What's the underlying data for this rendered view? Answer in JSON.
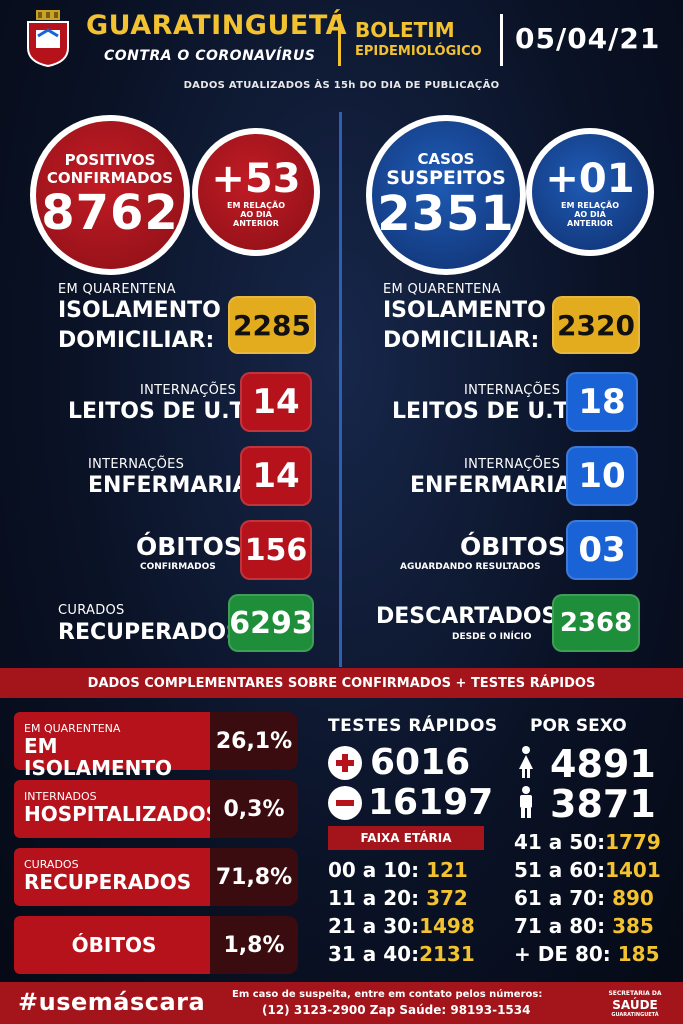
{
  "header": {
    "city": "GUARATINGUETÁ",
    "subtitle": "CONTRA O CORONAVÍRUS",
    "boletim_line1": "BOLETIM",
    "boletim_line2": "EPIDEMIOLÓGICO",
    "date": "05/04/21",
    "updated_note": "DADOS ATUALIZADOS ÀS 15h DO DIA DE PUBLICAÇÃO"
  },
  "colors": {
    "red": "#b5121b",
    "blue": "#1a63d6",
    "yellow": "#e3ac1f",
    "green": "#1e8e3a",
    "gold_text": "#f2c230"
  },
  "confirmed": {
    "label1": "POSITIVOS",
    "label2": "CONFIRMADOS",
    "value": "8762",
    "delta": "+53",
    "delta_note": "EM RELAÇÃO AO DIA ANTERIOR"
  },
  "suspected": {
    "label1": "CASOS",
    "label2": "SUSPEITOS",
    "value": "2351",
    "delta": "+01",
    "delta_note": "EM RELAÇÃO AO DIA ANTERIOR"
  },
  "left_rows": {
    "quarantine_small": "EM QUARENTENA",
    "quarantine_big1": "ISOLAMENTO",
    "quarantine_big2": "DOMICILIAR:",
    "quarantine_value": "2285",
    "uti_small": "INTERNAÇÕES",
    "uti_big": "LEITOS DE U.T.I:",
    "uti_value": "14",
    "enf_small": "INTERNAÇÕES",
    "enf_big": "ENFERMARIA:",
    "enf_value": "14",
    "deaths_big": "ÓBITOS:",
    "deaths_sub": "CONFIRMADOS",
    "deaths_value": "156",
    "cured_small": "CURADOS",
    "cured_big": "RECUPERADOS:",
    "cured_value": "6293"
  },
  "right_rows": {
    "quarantine_small": "EM QUARENTENA",
    "quarantine_big1": "ISOLAMENTO",
    "quarantine_big2": "DOMICILIAR:",
    "quarantine_value": "2320",
    "uti_small": "INTERNAÇÕES",
    "uti_big": "LEITOS DE U.T.I:",
    "uti_value": "18",
    "enf_small": "INTERNAÇÕES",
    "enf_big": "ENFERMARIA:",
    "enf_value": "10",
    "deaths_big": "ÓBITOS:",
    "deaths_sub": "AGUARDANDO RESULTADOS",
    "deaths_value": "03",
    "discarded_big": "DESCARTADOS:",
    "discarded_sub": "DESDE O INÍCIO",
    "discarded_value": "2368"
  },
  "complementary": {
    "band_title": "DADOS COMPLEMENTARES SOBRE CONFIRMADOS + TESTES RÁPIDOS",
    "items": [
      {
        "small": "EM QUARENTENA",
        "big": "EM ISOLAMENTO",
        "pct": "26,1%"
      },
      {
        "small": "INTERNADOS",
        "big": "HOSPITALIZADOS",
        "pct": "0,3%"
      },
      {
        "small": "CURADOS",
        "big": "RECUPERADOS",
        "pct": "71,8%"
      },
      {
        "small": "",
        "big": "ÓBITOS",
        "pct": "1,8%"
      }
    ]
  },
  "rapid_tests": {
    "title": "TESTES RÁPIDOS",
    "positive": "6016",
    "negative": "16197"
  },
  "by_sex": {
    "title": "POR SEXO",
    "female": "4891",
    "male": "3871"
  },
  "age": {
    "title": "FAIXA ETÁRIA",
    "left": [
      {
        "range": "00 a 10:",
        "value": "121"
      },
      {
        "range": "11 a 20:",
        "value": "372"
      },
      {
        "range": "21 a 30:",
        "value": "1498"
      },
      {
        "range": "31 a 40:",
        "value": "2131"
      }
    ],
    "right": [
      {
        "range": "41 a 50:",
        "value": "1779"
      },
      {
        "range": "51 a 60:",
        "value": "1401"
      },
      {
        "range": "61 a 70:",
        "value": "890"
      },
      {
        "range": "71 a 80:",
        "value": "385"
      },
      {
        "range": "+ DE 80:",
        "value": "185"
      }
    ]
  },
  "footer": {
    "hashtag": "#usemáscara",
    "contact_line1": "Em caso de suspeita, entre em contato pelos números:",
    "contact_line2": "(12) 3123-2900 Zap Saúde: 98193-1534",
    "sec_line1": "SECRETARIA DA",
    "sec_line2": "SAÚDE",
    "sec_line3": "GUARATINGUETÁ"
  }
}
